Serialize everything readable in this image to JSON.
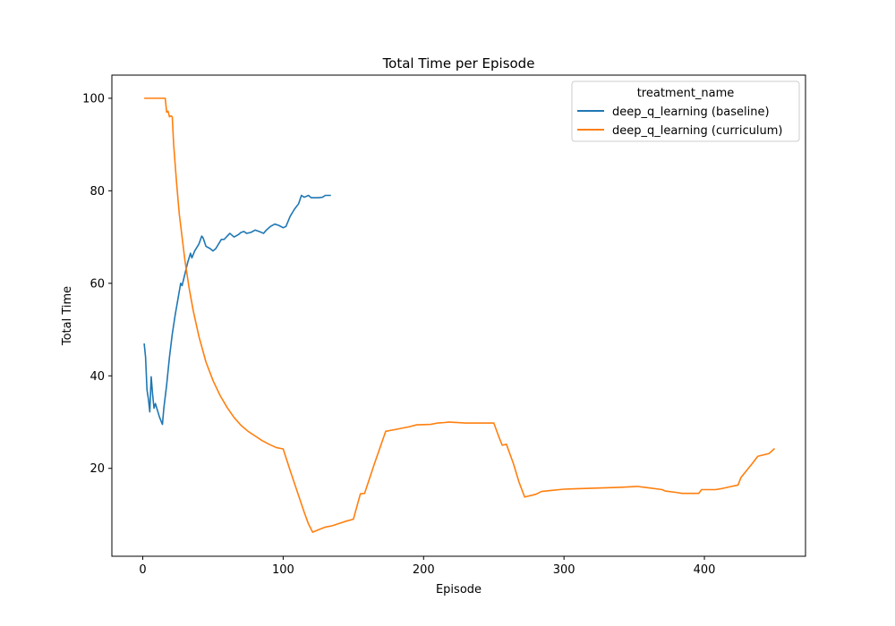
{
  "chart_data": {
    "type": "line",
    "title": "Total Time per Episode",
    "xlabel": "Episode",
    "ylabel": "Total Time",
    "xlim": [
      -22,
      472
    ],
    "ylim": [
      1,
      105
    ],
    "xticks": [
      0,
      100,
      200,
      300,
      400
    ],
    "yticks": [
      20,
      40,
      60,
      80,
      100
    ],
    "grid": false,
    "legend": {
      "title": "treatment_name",
      "placement": "top-right"
    },
    "series": [
      {
        "name": "deep_q_learning (baseline)",
        "color": "#1f77b4",
        "points": [
          [
            1,
            47
          ],
          [
            2,
            44
          ],
          [
            3,
            37
          ],
          [
            4,
            35
          ],
          [
            5,
            32.2
          ],
          [
            6,
            39.8
          ],
          [
            7,
            36
          ],
          [
            8,
            33
          ],
          [
            9,
            34
          ],
          [
            10,
            33
          ],
          [
            12,
            31
          ],
          [
            14,
            29.5
          ],
          [
            15,
            33
          ],
          [
            17,
            38
          ],
          [
            19,
            44
          ],
          [
            21,
            49
          ],
          [
            23,
            53
          ],
          [
            25,
            56.5
          ],
          [
            27,
            60
          ],
          [
            28,
            59.5
          ],
          [
            30,
            62
          ],
          [
            32,
            64.5
          ],
          [
            34,
            66.5
          ],
          [
            35,
            65.5
          ],
          [
            37,
            67
          ],
          [
            39,
            68
          ],
          [
            40,
            68.5
          ],
          [
            42,
            70.2
          ],
          [
            43,
            69.8
          ],
          [
            45,
            68
          ],
          [
            48,
            67.5
          ],
          [
            50,
            67
          ],
          [
            52,
            67.5
          ],
          [
            54,
            68.5
          ],
          [
            56,
            69.5
          ],
          [
            58,
            69.5
          ],
          [
            62,
            70.8
          ],
          [
            65,
            70
          ],
          [
            68,
            70.5
          ],
          [
            70,
            71
          ],
          [
            72,
            71.2
          ],
          [
            74,
            70.8
          ],
          [
            77,
            71
          ],
          [
            80,
            71.5
          ],
          [
            83,
            71.2
          ],
          [
            86,
            70.8
          ],
          [
            88,
            71.5
          ],
          [
            91,
            72.3
          ],
          [
            94,
            72.8
          ],
          [
            97,
            72.5
          ],
          [
            100,
            72
          ],
          [
            102,
            72.3
          ],
          [
            105,
            74.5
          ],
          [
            108,
            76
          ],
          [
            111,
            77.2
          ],
          [
            113,
            79
          ],
          [
            115,
            78.6
          ],
          [
            118,
            79
          ],
          [
            120,
            78.5
          ],
          [
            125,
            78.5
          ],
          [
            128,
            78.6
          ],
          [
            130,
            79
          ],
          [
            134,
            79
          ]
        ]
      },
      {
        "name": "deep_q_learning (curriculum)",
        "color": "#ff7f0e",
        "points": [
          [
            1,
            100
          ],
          [
            5,
            100
          ],
          [
            10,
            100
          ],
          [
            16,
            100
          ],
          [
            17,
            97
          ],
          [
            18,
            97.2
          ],
          [
            19,
            96
          ],
          [
            20,
            96.2
          ],
          [
            21,
            96
          ],
          [
            22,
            90
          ],
          [
            24,
            82
          ],
          [
            26,
            75
          ],
          [
            28,
            70
          ],
          [
            30,
            65
          ],
          [
            33,
            59
          ],
          [
            36,
            54
          ],
          [
            40,
            48.5
          ],
          [
            45,
            43
          ],
          [
            50,
            39
          ],
          [
            55,
            35.8
          ],
          [
            60,
            33.2
          ],
          [
            65,
            31
          ],
          [
            70,
            29.3
          ],
          [
            75,
            28
          ],
          [
            80,
            27
          ],
          [
            85,
            26
          ],
          [
            90,
            25.2
          ],
          [
            95,
            24.5
          ],
          [
            100,
            24.2
          ],
          [
            105,
            19.5
          ],
          [
            110,
            15
          ],
          [
            115,
            10.5
          ],
          [
            118,
            8
          ],
          [
            121,
            6.2
          ],
          [
            125,
            6.7
          ],
          [
            130,
            7.3
          ],
          [
            135,
            7.6
          ],
          [
            140,
            8.1
          ],
          [
            145,
            8.6
          ],
          [
            150,
            9
          ],
          [
            155,
            14.5
          ],
          [
            158,
            14.6
          ],
          [
            165,
            21
          ],
          [
            173,
            28
          ],
          [
            180,
            28.4
          ],
          [
            190,
            29
          ],
          [
            195,
            29.4
          ],
          [
            205,
            29.5
          ],
          [
            210,
            29.8
          ],
          [
            215,
            29.9
          ],
          [
            218,
            30
          ],
          [
            230,
            29.8
          ],
          [
            240,
            29.8
          ],
          [
            250,
            29.8
          ],
          [
            254,
            26.5
          ],
          [
            256,
            25
          ],
          [
            259,
            25.2
          ],
          [
            264,
            21
          ],
          [
            268,
            17
          ],
          [
            272,
            13.8
          ],
          [
            280,
            14.4
          ],
          [
            284,
            15
          ],
          [
            290,
            15.2
          ],
          [
            300,
            15.5
          ],
          [
            320,
            15.7
          ],
          [
            340,
            15.9
          ],
          [
            352,
            16.1
          ],
          [
            360,
            15.8
          ],
          [
            370,
            15.4
          ],
          [
            372,
            15.1
          ],
          [
            380,
            14.8
          ],
          [
            384,
            14.6
          ],
          [
            388,
            14.6
          ],
          [
            396,
            14.6
          ],
          [
            398,
            15.4
          ],
          [
            408,
            15.4
          ],
          [
            412,
            15.6
          ],
          [
            418,
            16
          ],
          [
            424,
            16.4
          ],
          [
            426,
            18
          ],
          [
            430,
            19.5
          ],
          [
            434,
            21
          ],
          [
            438,
            22.6
          ],
          [
            446,
            23.2
          ],
          [
            450,
            24.3
          ]
        ]
      }
    ]
  }
}
